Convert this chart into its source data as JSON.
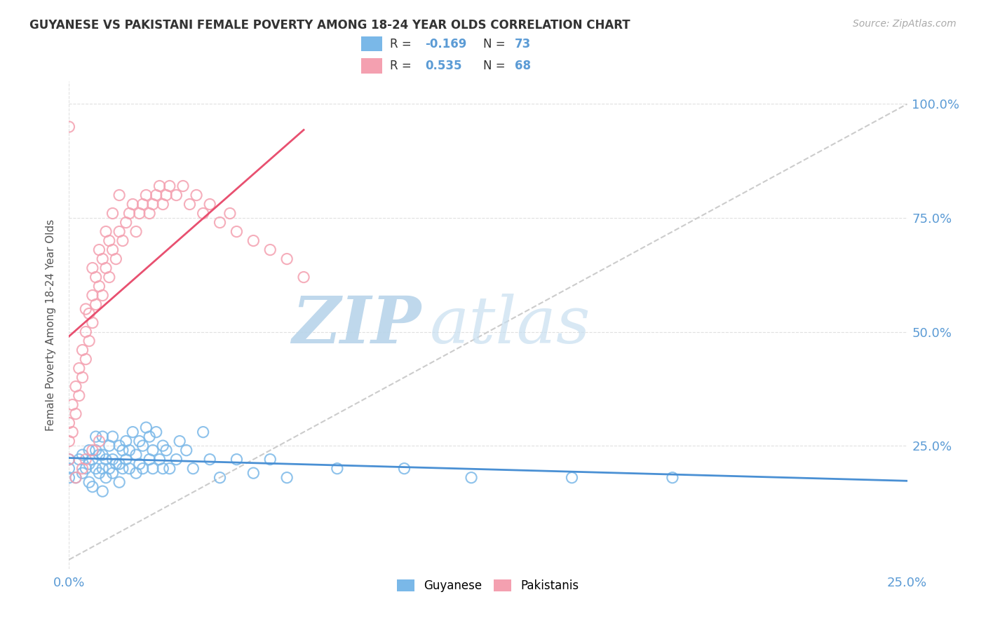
{
  "title": "GUYANESE VS PAKISTANI FEMALE POVERTY AMONG 18-24 YEAR OLDS CORRELATION CHART",
  "source": "Source: ZipAtlas.com",
  "ylabel": "Female Poverty Among 18-24 Year Olds",
  "yaxis_labels": [
    "100.0%",
    "75.0%",
    "50.0%",
    "25.0%"
  ],
  "yaxis_values": [
    1.0,
    0.75,
    0.5,
    0.25
  ],
  "xlim": [
    0.0,
    0.25
  ],
  "ylim": [
    -0.02,
    1.05
  ],
  "guyanese_color": "#7ab8e8",
  "pakistani_color": "#f4a0b0",
  "guyanese_line_color": "#4a90d4",
  "pakistani_line_color": "#e85070",
  "diagonal_color": "#cccccc",
  "watermark_zip": "ZIP",
  "watermark_atlas": "atlas",
  "watermark_color": "#c8dff0",
  "background_color": "#ffffff",
  "plot_bg_color": "#ffffff",
  "grid_color": "#e0e0e0",
  "legend_text_color": "#333333",
  "legend_value_color": "#5b9bd5",
  "guyanese_R": "-0.169",
  "guyanese_N": "73",
  "pakistani_R": "0.535",
  "pakistani_N": "68",
  "legend_label1": "Guyanese",
  "legend_label2": "Pakistanis",
  "guyanese_scatter_x": [
    0.0,
    0.0,
    0.0,
    0.002,
    0.003,
    0.004,
    0.004,
    0.005,
    0.006,
    0.006,
    0.006,
    0.007,
    0.007,
    0.008,
    0.008,
    0.008,
    0.009,
    0.009,
    0.01,
    0.01,
    0.01,
    0.01,
    0.011,
    0.011,
    0.012,
    0.012,
    0.013,
    0.013,
    0.013,
    0.014,
    0.015,
    0.015,
    0.015,
    0.016,
    0.016,
    0.017,
    0.017,
    0.018,
    0.018,
    0.019,
    0.02,
    0.02,
    0.021,
    0.021,
    0.022,
    0.022,
    0.023,
    0.024,
    0.024,
    0.025,
    0.025,
    0.026,
    0.027,
    0.028,
    0.028,
    0.029,
    0.03,
    0.032,
    0.033,
    0.035,
    0.037,
    0.04,
    0.042,
    0.045,
    0.05,
    0.055,
    0.06,
    0.065,
    0.08,
    0.1,
    0.12,
    0.15,
    0.18
  ],
  "guyanese_scatter_y": [
    0.2,
    0.22,
    0.18,
    0.18,
    0.22,
    0.19,
    0.23,
    0.2,
    0.17,
    0.21,
    0.24,
    0.16,
    0.22,
    0.2,
    0.24,
    0.27,
    0.19,
    0.23,
    0.15,
    0.2,
    0.23,
    0.27,
    0.18,
    0.22,
    0.2,
    0.25,
    0.19,
    0.22,
    0.27,
    0.21,
    0.17,
    0.21,
    0.25,
    0.2,
    0.24,
    0.22,
    0.26,
    0.2,
    0.24,
    0.28,
    0.19,
    0.23,
    0.21,
    0.26,
    0.2,
    0.25,
    0.29,
    0.22,
    0.27,
    0.2,
    0.24,
    0.28,
    0.22,
    0.2,
    0.25,
    0.24,
    0.2,
    0.22,
    0.26,
    0.24,
    0.2,
    0.28,
    0.22,
    0.18,
    0.22,
    0.19,
    0.22,
    0.18,
    0.2,
    0.2,
    0.18,
    0.18,
    0.18
  ],
  "pakistani_scatter_x": [
    0.0,
    0.0,
    0.0,
    0.001,
    0.001,
    0.002,
    0.002,
    0.003,
    0.003,
    0.004,
    0.004,
    0.005,
    0.005,
    0.005,
    0.006,
    0.006,
    0.007,
    0.007,
    0.007,
    0.008,
    0.008,
    0.009,
    0.009,
    0.01,
    0.01,
    0.011,
    0.011,
    0.012,
    0.012,
    0.013,
    0.013,
    0.014,
    0.015,
    0.015,
    0.016,
    0.017,
    0.018,
    0.019,
    0.02,
    0.021,
    0.022,
    0.023,
    0.024,
    0.025,
    0.026,
    0.027,
    0.028,
    0.029,
    0.03,
    0.032,
    0.034,
    0.036,
    0.038,
    0.04,
    0.042,
    0.045,
    0.048,
    0.05,
    0.055,
    0.06,
    0.065,
    0.07,
    0.002,
    0.004,
    0.005,
    0.007,
    0.009,
    0.0
  ],
  "pakistani_scatter_y": [
    0.22,
    0.26,
    0.3,
    0.28,
    0.34,
    0.32,
    0.38,
    0.36,
    0.42,
    0.4,
    0.46,
    0.44,
    0.5,
    0.55,
    0.48,
    0.54,
    0.52,
    0.58,
    0.64,
    0.56,
    0.62,
    0.6,
    0.68,
    0.58,
    0.66,
    0.64,
    0.72,
    0.62,
    0.7,
    0.68,
    0.76,
    0.66,
    0.72,
    0.8,
    0.7,
    0.74,
    0.76,
    0.78,
    0.72,
    0.76,
    0.78,
    0.8,
    0.76,
    0.78,
    0.8,
    0.82,
    0.78,
    0.8,
    0.82,
    0.8,
    0.82,
    0.78,
    0.8,
    0.76,
    0.78,
    0.74,
    0.76,
    0.72,
    0.7,
    0.68,
    0.66,
    0.62,
    0.18,
    0.2,
    0.22,
    0.24,
    0.26,
    0.95
  ]
}
